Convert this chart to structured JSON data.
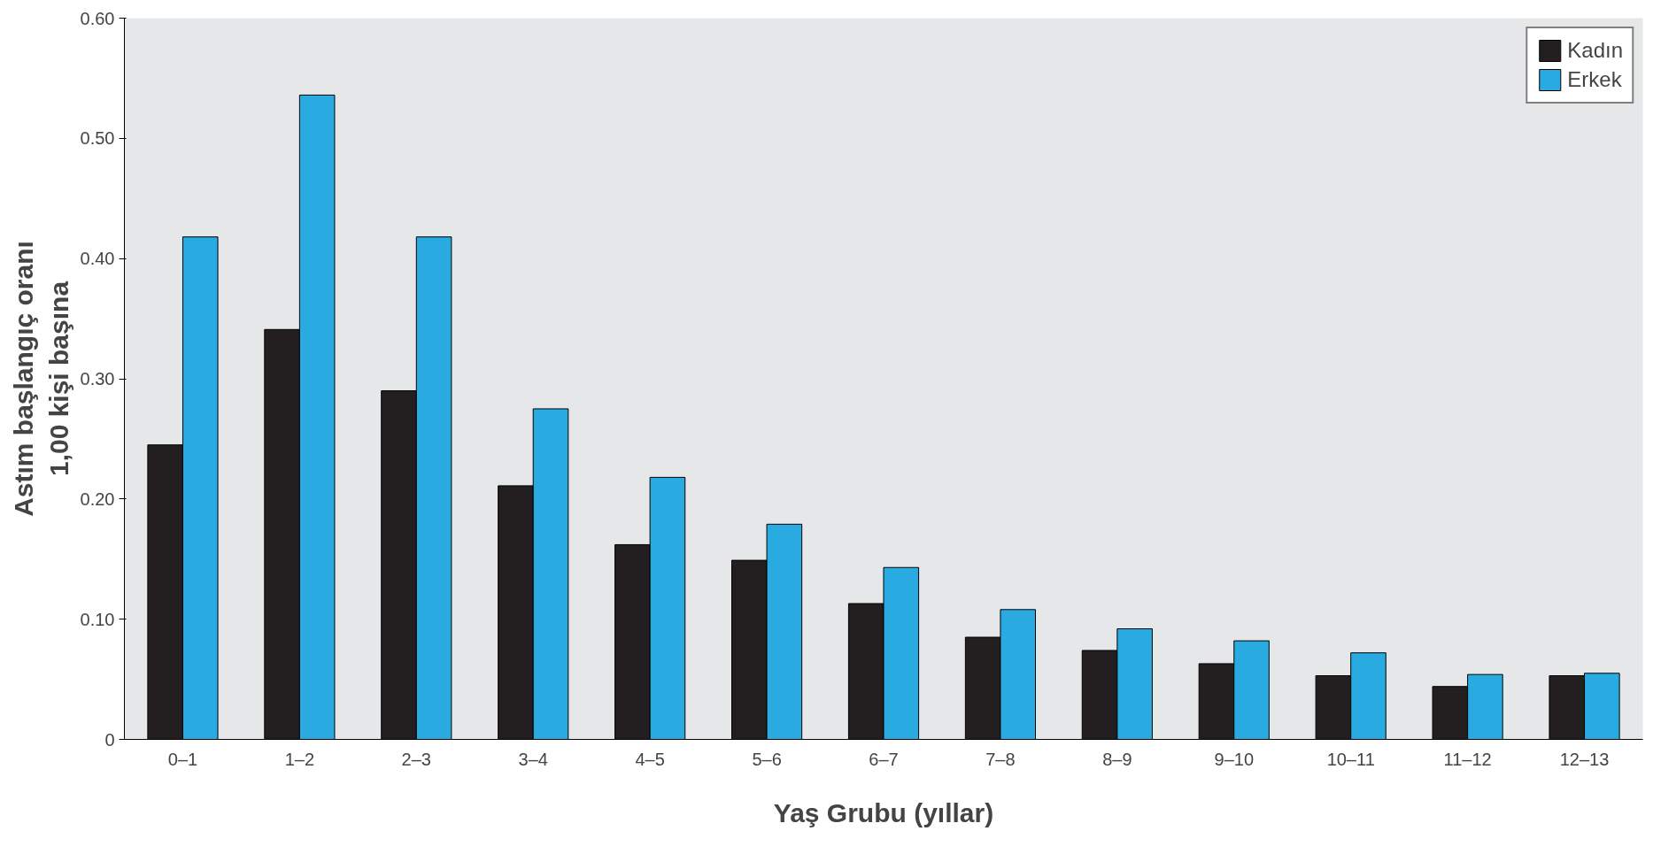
{
  "chart_data": {
    "type": "bar",
    "xlabel": "Yaş Grubu (yıllar)",
    "ylabel": "Astım başlangıç oranı\n1,00 kişi başına",
    "categories": [
      "0–1",
      "1–2",
      "2–3",
      "3–4",
      "4–5",
      "5–6",
      "6–7",
      "7–8",
      "8–9",
      "9–10",
      "10–11",
      "11–12",
      "12–13"
    ],
    "series": [
      {
        "name": "Kadın",
        "color": "#231f20",
        "values": [
          0.245,
          0.341,
          0.29,
          0.211,
          0.162,
          0.149,
          0.113,
          0.085,
          0.074,
          0.063,
          0.053,
          0.044,
          0.053
        ]
      },
      {
        "name": "Erkek",
        "color": "#29abe2",
        "values": [
          0.418,
          0.536,
          0.418,
          0.275,
          0.218,
          0.179,
          0.143,
          0.108,
          0.092,
          0.082,
          0.072,
          0.054,
          0.055
        ]
      }
    ],
    "ylim": [
      0,
      0.6
    ],
    "yticks": [
      {
        "value": 0,
        "label": "0"
      },
      {
        "value": 0.1,
        "label": "0.10"
      },
      {
        "value": 0.2,
        "label": "0.20"
      },
      {
        "value": 0.3,
        "label": "0.30"
      },
      {
        "value": 0.4,
        "label": "0.40"
      },
      {
        "value": 0.5,
        "label": "0.50"
      },
      {
        "value": 0.6,
        "label": "0.60"
      }
    ],
    "legend": "top right"
  }
}
